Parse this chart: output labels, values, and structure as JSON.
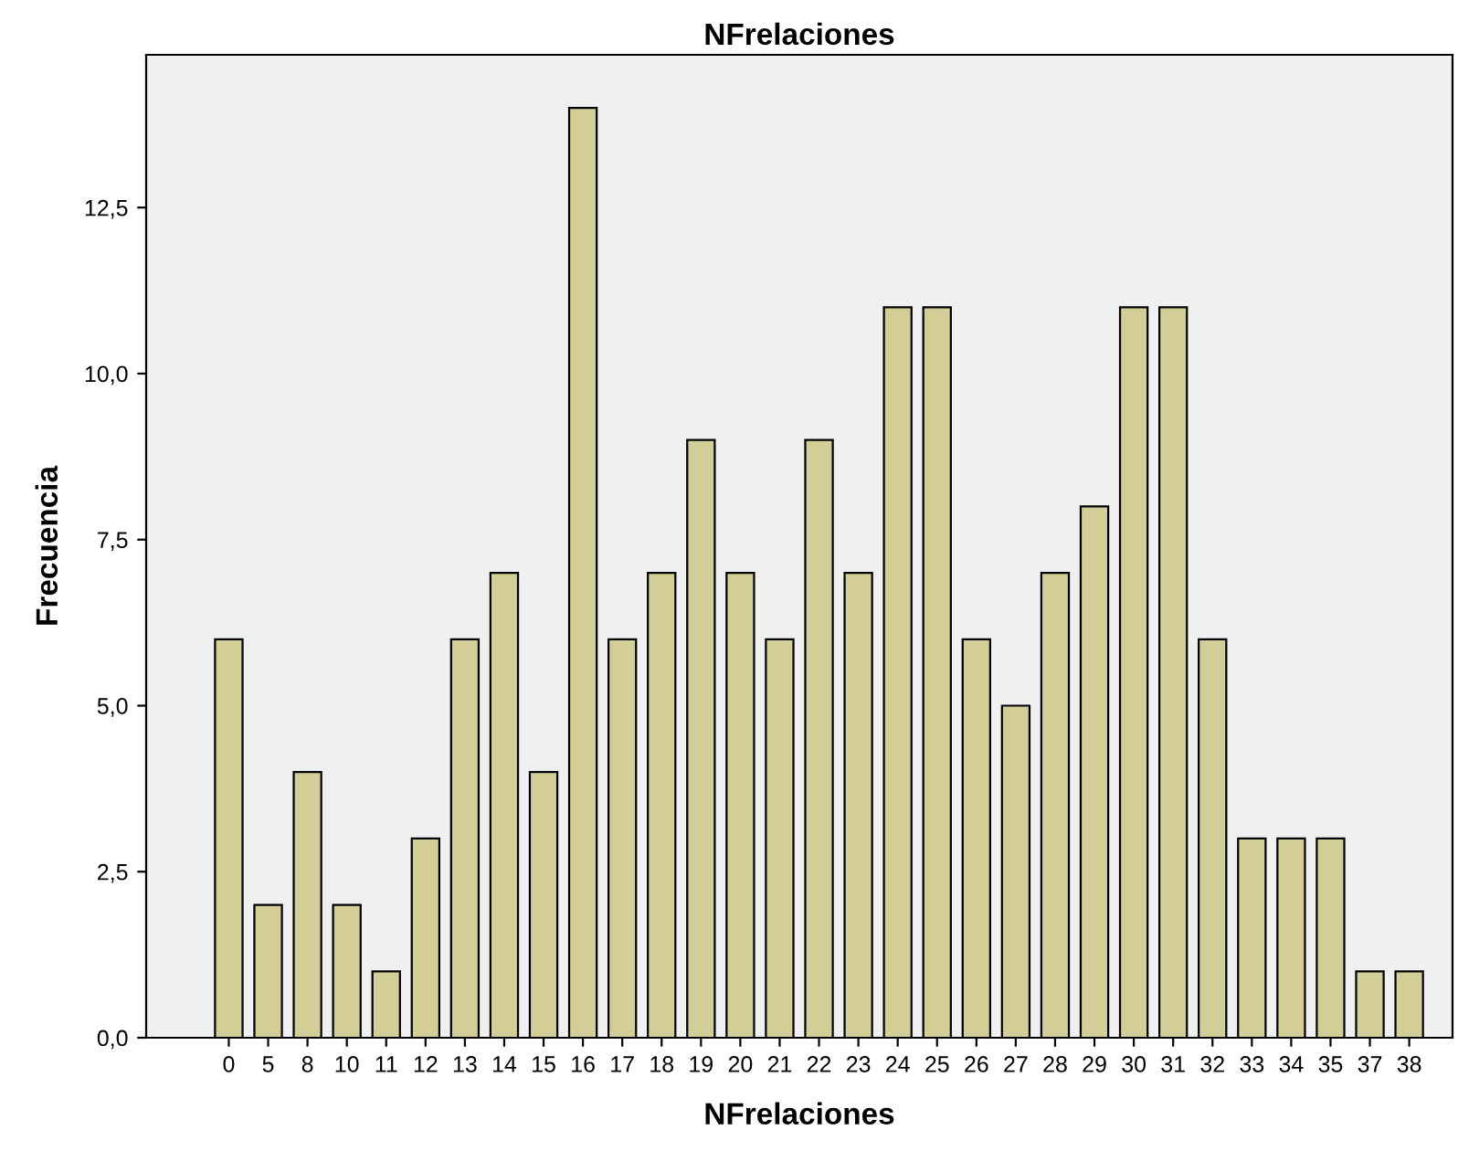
{
  "chart_data": {
    "type": "bar",
    "title": "NFrelaciones",
    "xlabel": "NFrelaciones",
    "ylabel": "Frecuencia",
    "categories": [
      "0",
      "5",
      "8",
      "10",
      "11",
      "12",
      "13",
      "14",
      "15",
      "16",
      "17",
      "18",
      "19",
      "20",
      "21",
      "22",
      "23",
      "24",
      "25",
      "26",
      "27",
      "28",
      "29",
      "30",
      "31",
      "32",
      "33",
      "34",
      "35",
      "37",
      "38"
    ],
    "values": [
      6,
      2,
      4,
      2,
      1,
      3,
      6,
      7,
      4,
      14,
      6,
      7,
      9,
      7,
      6,
      9,
      7,
      11,
      11,
      6,
      5,
      7,
      8,
      11,
      11,
      6,
      3,
      3,
      3,
      1,
      1
    ],
    "color": "#d3ce97",
    "ylim": [
      0,
      14.8
    ],
    "yticks": [
      {
        "value": 0,
        "label": "0,0"
      },
      {
        "value": 2.5,
        "label": "2,5"
      },
      {
        "value": 5,
        "label": "5,0"
      },
      {
        "value": 7.5,
        "label": "7,5"
      },
      {
        "value": 10,
        "label": "10,0"
      },
      {
        "value": 12.5,
        "label": "12,5"
      }
    ],
    "grid": false
  }
}
